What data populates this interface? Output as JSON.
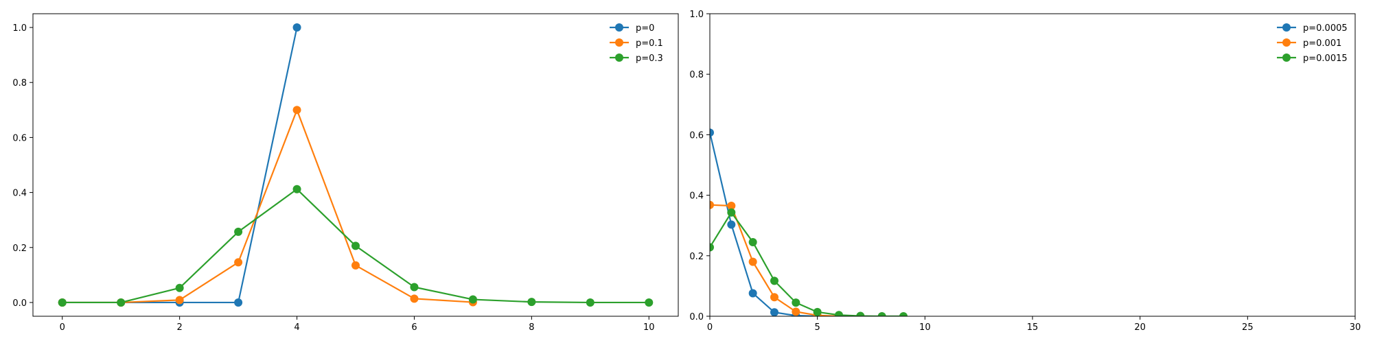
{
  "chart_data": [
    {
      "type": "line",
      "title": "",
      "xlabel": "",
      "ylabel": "",
      "xlim": [
        -0.5,
        10.5
      ],
      "ylim": [
        -0.05,
        1.05
      ],
      "xticks": [
        0,
        2,
        4,
        6,
        8,
        10
      ],
      "xtick_labels": [
        "0",
        "2",
        "4",
        "6",
        "8",
        "10"
      ],
      "yticks": [
        0.0,
        0.2,
        0.4,
        0.6,
        0.8,
        1.0
      ],
      "ytick_labels": [
        "0.0",
        "0.2",
        "0.4",
        "0.6",
        "0.8",
        "1.0"
      ],
      "grid": false,
      "legend_position": "top-right",
      "series": [
        {
          "name": "p=0",
          "color": "#1f77b4",
          "x": [
            0,
            1,
            2,
            3,
            4
          ],
          "y": [
            0.0,
            0.0,
            0.0,
            0.0,
            1.0
          ]
        },
        {
          "name": "p=0.1",
          "color": "#ff7f0e",
          "x": [
            0,
            1,
            2,
            3,
            4,
            5,
            6,
            7
          ],
          "y": [
            0.0,
            0.0,
            0.009,
            0.146,
            0.7,
            0.135,
            0.014,
            0.001
          ]
        },
        {
          "name": "p=0.3",
          "color": "#2ca02c",
          "x": [
            0,
            1,
            2,
            3,
            4,
            5,
            6,
            7,
            8,
            9,
            10
          ],
          "y": [
            0.0,
            0.0,
            0.053,
            0.257,
            0.412,
            0.206,
            0.056,
            0.011,
            0.002,
            0.0,
            0.0
          ]
        }
      ]
    },
    {
      "type": "line",
      "title": "",
      "xlabel": "",
      "ylabel": "",
      "xlim": [
        0,
        30
      ],
      "ylim": [
        0,
        1.0
      ],
      "xticks": [
        0,
        5,
        10,
        15,
        20,
        25,
        30
      ],
      "xtick_labels": [
        "0",
        "5",
        "10",
        "15",
        "20",
        "25",
        "30"
      ],
      "yticks": [
        0.0,
        0.2,
        0.4,
        0.6,
        0.8,
        1.0
      ],
      "ytick_labels": [
        "0.0",
        "0.2",
        "0.4",
        "0.6",
        "0.8",
        "1.0"
      ],
      "grid": false,
      "legend_position": "top-right",
      "series": [
        {
          "name": "p=0.0005",
          "color": "#1f77b4",
          "x": [
            0,
            1,
            2,
            3,
            4,
            5
          ],
          "y": [
            0.607,
            0.303,
            0.076,
            0.013,
            0.002,
            0.0
          ]
        },
        {
          "name": "p=0.001",
          "color": "#ff7f0e",
          "x": [
            0,
            1,
            2,
            3,
            4,
            5,
            6,
            7
          ],
          "y": [
            0.368,
            0.365,
            0.18,
            0.063,
            0.015,
            0.003,
            0.0,
            0.0
          ]
        },
        {
          "name": "p=0.0015",
          "color": "#2ca02c",
          "x": [
            0,
            1,
            2,
            3,
            4,
            5,
            6,
            7,
            8,
            9
          ],
          "y": [
            0.228,
            0.343,
            0.245,
            0.117,
            0.045,
            0.014,
            0.004,
            0.001,
            0.0,
            0.0
          ]
        }
      ]
    }
  ]
}
